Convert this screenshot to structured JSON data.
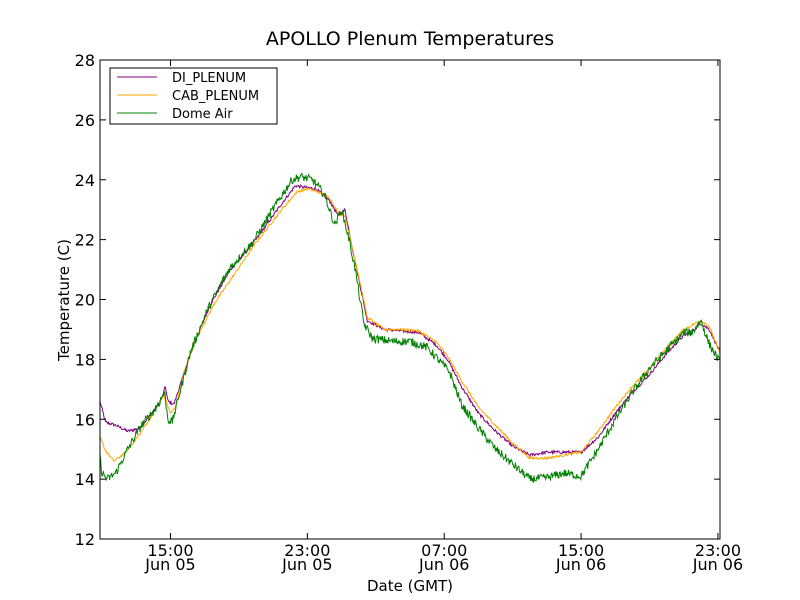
{
  "chart_data": {
    "type": "line",
    "title": "APOLLO Plenum Temperatures",
    "xlabel": "Date (GMT)",
    "ylabel": "Temperature (C)",
    "ylim": [
      12,
      28
    ],
    "yticks": [
      12,
      14,
      16,
      18,
      20,
      22,
      24,
      26,
      28
    ],
    "x_unit": "hours since Jun 05 00:00 GMT",
    "xlim": [
      10.88,
      47.12
    ],
    "xticks": [
      {
        "x": 15,
        "line1": "15:00",
        "line2": "Jun 05"
      },
      {
        "x": 23,
        "line1": "23:00",
        "line2": "Jun 05"
      },
      {
        "x": 31,
        "line1": "07:00",
        "line2": "Jun 06"
      },
      {
        "x": 39,
        "line1": "15:00",
        "line2": "Jun 06"
      },
      {
        "x": 47,
        "line1": "23:00",
        "line2": "Jun 06"
      }
    ],
    "legend_position": "top-left",
    "series": [
      {
        "name": "DI_PLENUM",
        "color": "#800080",
        "noise": 0.05,
        "points": [
          [
            10.88,
            16.6
          ],
          [
            11.2,
            15.9
          ],
          [
            11.8,
            15.8
          ],
          [
            12.5,
            15.6
          ],
          [
            13.2,
            15.7
          ],
          [
            13.9,
            16.2
          ],
          [
            14.5,
            16.7
          ],
          [
            14.7,
            17.1
          ],
          [
            14.85,
            16.6
          ],
          [
            15.2,
            16.5
          ],
          [
            15.6,
            17.2
          ],
          [
            16.3,
            18.4
          ],
          [
            17.3,
            19.8
          ],
          [
            18.5,
            21.0
          ],
          [
            20.0,
            22.0
          ],
          [
            21.5,
            23.2
          ],
          [
            22.3,
            23.8
          ],
          [
            22.8,
            23.75
          ],
          [
            23.5,
            23.7
          ],
          [
            24.3,
            23.3
          ],
          [
            24.8,
            22.8
          ],
          [
            25.2,
            23.0
          ],
          [
            25.6,
            21.8
          ],
          [
            26.0,
            20.7
          ],
          [
            26.5,
            19.3
          ],
          [
            27.5,
            19.0
          ],
          [
            28.5,
            18.95
          ],
          [
            29.5,
            18.9
          ],
          [
            30.5,
            18.5
          ],
          [
            31.2,
            18.0
          ],
          [
            32.0,
            17.1
          ],
          [
            33.0,
            16.2
          ],
          [
            34.0,
            15.6
          ],
          [
            35.0,
            15.1
          ],
          [
            36.0,
            14.8
          ],
          [
            37.0,
            14.9
          ],
          [
            38.0,
            14.9
          ],
          [
            39.0,
            14.9
          ],
          [
            40.0,
            15.4
          ],
          [
            41.0,
            16.2
          ],
          [
            42.0,
            16.9
          ],
          [
            43.0,
            17.5
          ],
          [
            44.0,
            18.2
          ],
          [
            45.0,
            18.8
          ],
          [
            45.5,
            18.95
          ],
          [
            46.0,
            19.2
          ],
          [
            46.5,
            19.0
          ],
          [
            47.12,
            18.25
          ]
        ]
      },
      {
        "name": "CAB_PLENUM",
        "color": "#ffa500",
        "noise": 0.04,
        "points": [
          [
            10.88,
            15.4
          ],
          [
            11.2,
            14.95
          ],
          [
            11.7,
            14.6
          ],
          [
            12.4,
            14.9
          ],
          [
            13.2,
            15.5
          ],
          [
            14.0,
            16.2
          ],
          [
            14.6,
            16.8
          ],
          [
            15.0,
            16.2
          ],
          [
            15.3,
            16.4
          ],
          [
            15.8,
            17.6
          ],
          [
            16.6,
            18.8
          ],
          [
            17.6,
            19.9
          ],
          [
            18.8,
            20.9
          ],
          [
            20.0,
            21.9
          ],
          [
            21.5,
            23.0
          ],
          [
            22.4,
            23.6
          ],
          [
            23.0,
            23.7
          ],
          [
            23.6,
            23.6
          ],
          [
            24.3,
            23.4
          ],
          [
            24.8,
            22.9
          ],
          [
            25.2,
            22.8
          ],
          [
            25.6,
            21.8
          ],
          [
            26.0,
            20.8
          ],
          [
            26.5,
            19.4
          ],
          [
            27.5,
            19.0
          ],
          [
            28.5,
            19.0
          ],
          [
            29.5,
            18.95
          ],
          [
            30.5,
            18.6
          ],
          [
            31.2,
            18.1
          ],
          [
            32.0,
            17.3
          ],
          [
            33.0,
            16.4
          ],
          [
            34.0,
            15.8
          ],
          [
            35.0,
            15.2
          ],
          [
            36.0,
            14.7
          ],
          [
            37.0,
            14.7
          ],
          [
            38.0,
            14.8
          ],
          [
            39.0,
            14.9
          ],
          [
            40.0,
            15.6
          ],
          [
            41.0,
            16.4
          ],
          [
            42.0,
            17.1
          ],
          [
            43.0,
            17.7
          ],
          [
            44.0,
            18.4
          ],
          [
            45.0,
            19.0
          ],
          [
            46.0,
            19.3
          ],
          [
            46.5,
            19.1
          ],
          [
            47.12,
            18.2
          ]
        ]
      },
      {
        "name": "Dome Air",
        "color": "#008000",
        "noise": 0.14,
        "points": [
          [
            10.88,
            14.7
          ],
          [
            11.0,
            14.2
          ],
          [
            11.3,
            14.0
          ],
          [
            11.8,
            14.2
          ],
          [
            12.5,
            15.0
          ],
          [
            13.3,
            15.8
          ],
          [
            14.2,
            16.4
          ],
          [
            14.65,
            16.9
          ],
          [
            14.85,
            16.0
          ],
          [
            15.1,
            15.9
          ],
          [
            15.5,
            16.8
          ],
          [
            16.2,
            18.3
          ],
          [
            17.2,
            19.7
          ],
          [
            18.4,
            21.0
          ],
          [
            19.8,
            21.9
          ],
          [
            21.3,
            23.3
          ],
          [
            22.1,
            24.0
          ],
          [
            22.6,
            24.1
          ],
          [
            23.3,
            24.0
          ],
          [
            24.0,
            23.5
          ],
          [
            24.6,
            22.5
          ],
          [
            25.0,
            23.0
          ],
          [
            25.4,
            22.1
          ],
          [
            25.8,
            21.0
          ],
          [
            26.3,
            19.2
          ],
          [
            26.8,
            18.7
          ],
          [
            28.0,
            18.6
          ],
          [
            29.0,
            18.6
          ],
          [
            30.0,
            18.4
          ],
          [
            30.8,
            17.9
          ],
          [
            31.3,
            17.6
          ],
          [
            32.0,
            16.5
          ],
          [
            33.0,
            15.7
          ],
          [
            34.0,
            15.0
          ],
          [
            35.0,
            14.5
          ],
          [
            36.0,
            14.0
          ],
          [
            37.0,
            14.05
          ],
          [
            38.0,
            14.2
          ],
          [
            39.0,
            14.1
          ],
          [
            40.0,
            15.0
          ],
          [
            41.0,
            16.0
          ],
          [
            42.0,
            16.9
          ],
          [
            43.0,
            17.7
          ],
          [
            44.0,
            18.3
          ],
          [
            45.0,
            18.9
          ],
          [
            45.5,
            18.9
          ],
          [
            46.0,
            19.3
          ],
          [
            46.5,
            18.5
          ],
          [
            47.12,
            17.9
          ]
        ]
      }
    ]
  }
}
